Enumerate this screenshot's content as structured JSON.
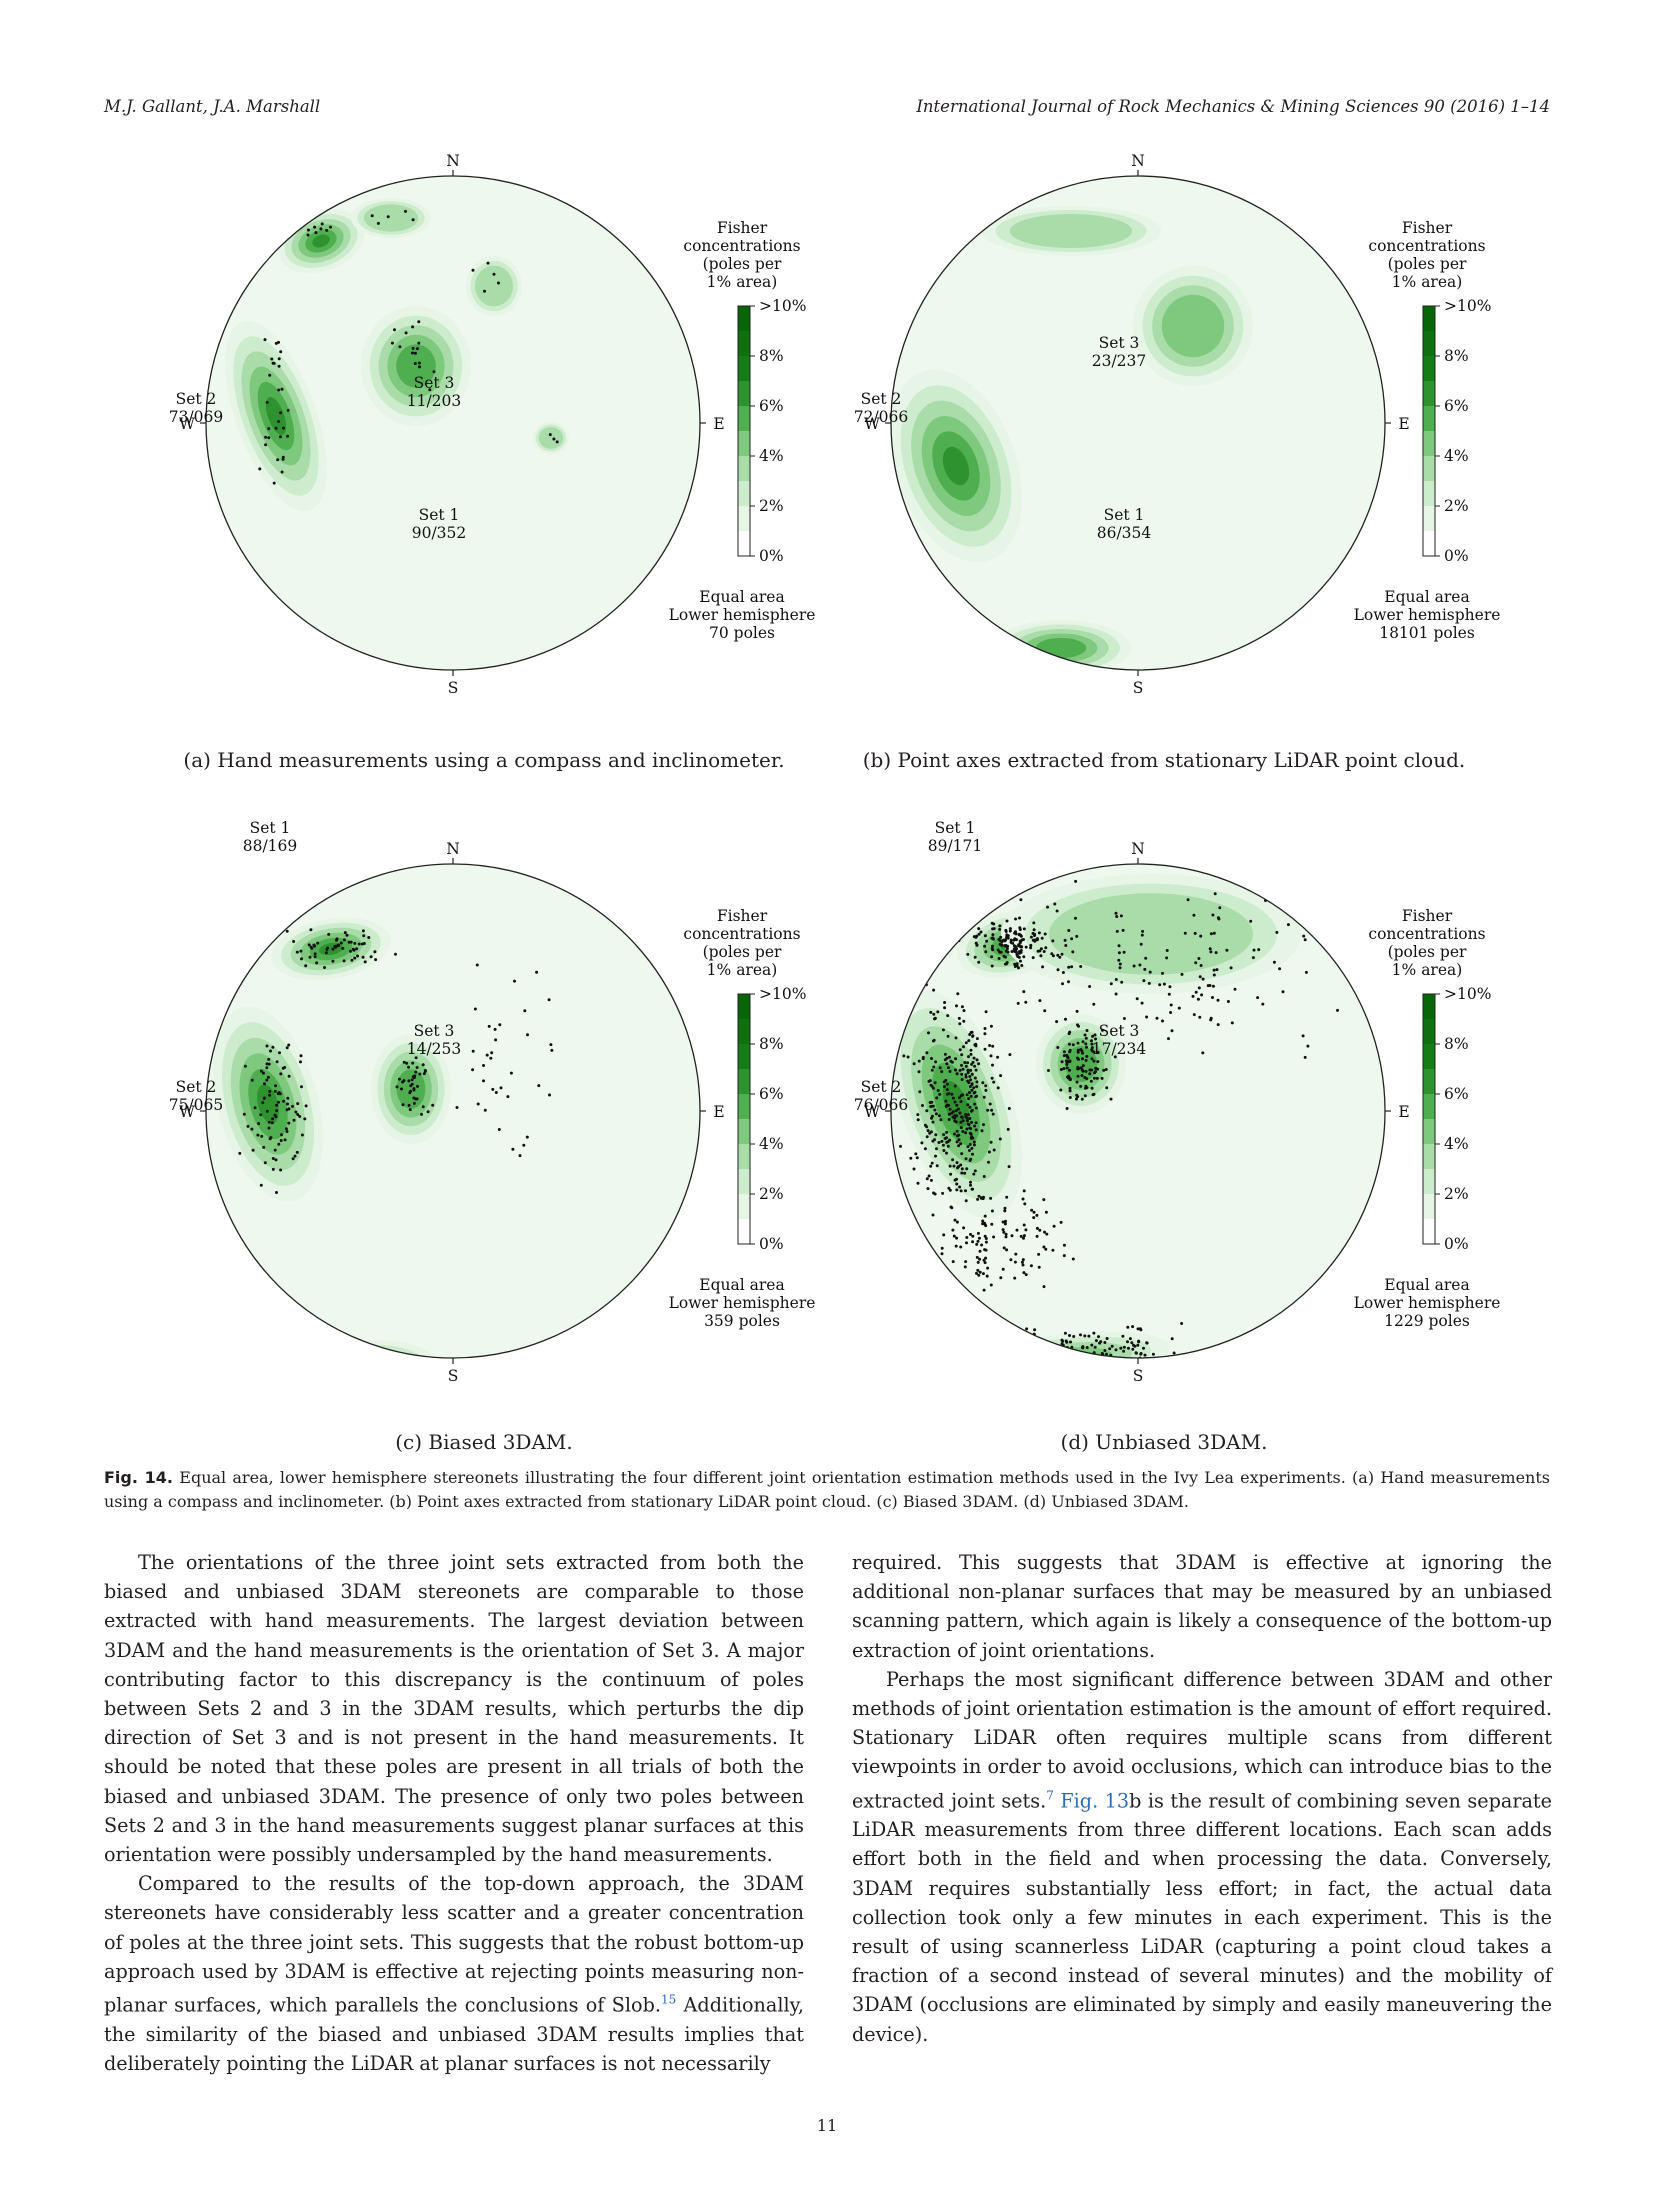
{
  "header": {
    "authors": "M.J. Gallant, J.A. Marshall",
    "journal": "International Journal of Rock Mechanics & Mining Sciences 90 (2016) 1–14"
  },
  "stereonet_common": {
    "legend_title": [
      "Fisher",
      "concentrations",
      "(poles per",
      "1% area)"
    ],
    "legend_ticks": [
      ">10%",
      "8%",
      "6%",
      "4%",
      "2%",
      "0%"
    ],
    "projection": [
      "Equal area",
      "Lower hemisphere"
    ],
    "compass": {
      "north": "N",
      "south": "S",
      "east": "E",
      "west": "W"
    },
    "colors": {
      "dark": "#1a8a1a",
      "mid": "#5dbb5d",
      "light": "#c8ebc8",
      "background": "#eef8ee"
    }
  },
  "panels": [
    {
      "caption": "(a) Hand measurements using a compass and inclinometer.",
      "poles": "70 poles",
      "sets": [
        {
          "name": "Set 1",
          "orientation": "90/352"
        },
        {
          "name": "Set 2",
          "orientation": "73/069"
        },
        {
          "name": "Set 3",
          "orientation": "11/203"
        }
      ]
    },
    {
      "caption": "(b) Point axes extracted from stationary LiDAR point cloud.",
      "poles": "18101 poles",
      "sets": [
        {
          "name": "Set 1",
          "orientation": "86/354"
        },
        {
          "name": "Set 2",
          "orientation": "72/066"
        },
        {
          "name": "Set 3",
          "orientation": "23/237"
        }
      ]
    },
    {
      "caption": "(c) Biased 3DAM.",
      "poles": "359 poles",
      "sets": [
        {
          "name": "Set 1",
          "orientation": "88/169"
        },
        {
          "name": "Set 2",
          "orientation": "75/065"
        },
        {
          "name": "Set 3",
          "orientation": "14/253"
        }
      ]
    },
    {
      "caption": "(d) Unbiased 3DAM.",
      "poles": "1229 poles",
      "sets": [
        {
          "name": "Set 1",
          "orientation": "89/171"
        },
        {
          "name": "Set 2",
          "orientation": "76/066"
        },
        {
          "name": "Set 3",
          "orientation": "17/234"
        }
      ]
    }
  ],
  "figure_caption": {
    "label": "Fig. 14.",
    "text": "Equal area, lower hemisphere stereonets illustrating the four different joint orientation estimation methods used in the Ivy Lea experiments. (a) Hand measurements using a compass and inclinometer. (b) Point axes extracted from stationary LiDAR point cloud. (c) Biased 3DAM. (d) Unbiased 3DAM."
  },
  "body": {
    "left_p1": "The orientations of the three joint sets extracted from both the biased and unbiased 3DAM stereonets are comparable to those extracted with hand measurements. The largest deviation between 3DAM and the hand measurements is the orientation of Set 3. A major contributing factor to this discrepancy is the continuum of poles between Sets 2 and 3 in the 3DAM results, which perturbs the dip direction of Set 3 and is not present in the hand measurements. It should be noted that these poles are present in all trials of both the biased and unbiased 3DAM. The presence of only two poles between Sets 2 and 3 in the hand measurements suggest planar surfaces at this orientation were possibly undersampled by the hand measurements.",
    "left_p2_a": "Compared to the results of the top-down approach, the 3DAM stereonets have considerably less scatter and a greater concentration of poles at the three joint sets. This suggests that the robust bottom-up approach used by 3DAM is effective at rejecting points measuring non-planar surfaces, which parallels the conclusions of Slob.",
    "left_p2_ref": "15",
    "left_p2_b": " Additionally, the similarity of the biased and unbiased 3DAM results implies that deliberately pointing the LiDAR at planar surfaces is not necessarily",
    "right_p1": "required. This suggests that 3DAM is effective at ignoring the additional non-planar surfaces that may be measured by an unbiased scanning pattern, which again is likely a consequence of the bottom-up extraction of joint orientations.",
    "right_p2_a": "Perhaps the most significant difference between 3DAM and other methods of joint orientation estimation is the amount of effort required. Stationary LiDAR often requires multiple scans from different viewpoints in order to avoid occlusions, which can introduce bias to the extracted joint sets.",
    "right_p2_ref1": "7",
    "right_p2_ref2": " Fig. 13",
    "right_p2_b": "b is the result of combining seven separate LiDAR measurements from three different locations. Each scan adds effort both in the field and when processing the data. Conversely, 3DAM requires substantially less effort; in fact, the actual data collection took only a few minutes in each experiment. This is the result of using scannerless LiDAR (capturing a point cloud takes a fraction of a second instead of several minutes) and the mobility of 3DAM (occlusions are eliminated by simply and easily maneuvering the device)."
  },
  "page_number": "11"
}
